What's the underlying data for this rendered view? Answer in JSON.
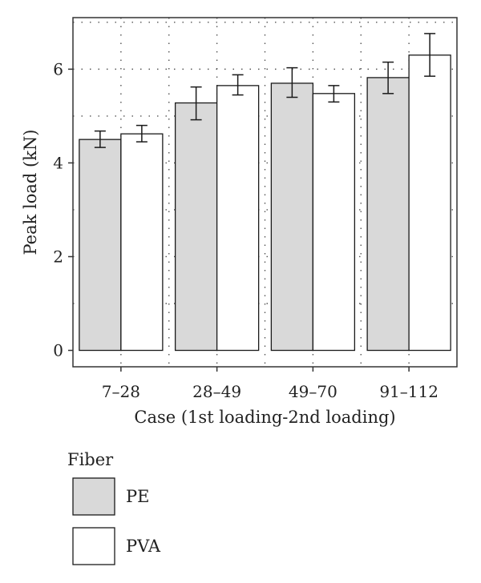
{
  "chart_data": {
    "type": "bar",
    "xlabel": "Case (1st loading-2nd loading)",
    "ylabel": "Peak load (kN)",
    "categories": [
      "7–28",
      "28–49",
      "49–70",
      "91–112"
    ],
    "series": [
      {
        "name": "PE",
        "values": [
          4.5,
          5.28,
          5.7,
          5.82
        ],
        "error_low": [
          4.33,
          4.92,
          5.4,
          5.48
        ],
        "error_high": [
          4.68,
          5.62,
          6.03,
          6.15
        ],
        "color": "#d9d9d9"
      },
      {
        "name": "PVA",
        "values": [
          4.62,
          5.65,
          5.48,
          6.3
        ],
        "error_low": [
          4.45,
          5.45,
          5.3,
          5.85
        ],
        "error_high": [
          4.8,
          5.88,
          5.65,
          6.76
        ],
        "color": "#ffffff"
      }
    ],
    "ylim": [
      -0.35,
      7.1
    ],
    "yticks": [
      0,
      2,
      4,
      6
    ],
    "grid": "dotted",
    "legend": {
      "title": "Fiber",
      "placement": "bottom-left"
    }
  }
}
